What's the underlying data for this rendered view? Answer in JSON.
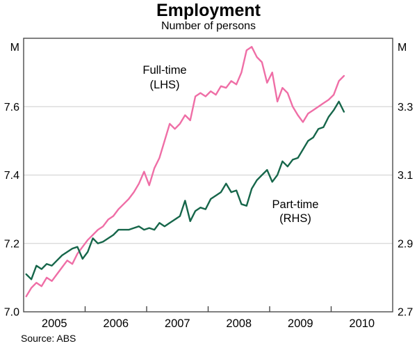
{
  "chart_data": {
    "type": "line",
    "title": "Employment",
    "subtitle": "Number of persons",
    "source": "Source: ABS",
    "x_axis": {
      "start_year": 2005,
      "months_total": 72,
      "year_labels": [
        "2005",
        "2006",
        "2007",
        "2008",
        "2009",
        "2010"
      ],
      "tick_month_boundaries": [
        12,
        24,
        36,
        48,
        60
      ]
    },
    "left_axis": {
      "unit": "M",
      "min": 7.0,
      "max": 7.8,
      "tick_values": [
        7.0,
        7.2,
        7.4,
        7.6
      ],
      "tick_labels": [
        "7.0",
        "7.2",
        "7.4",
        "7.6"
      ]
    },
    "right_axis": {
      "unit": "M",
      "min": 2.7,
      "max": 3.5,
      "tick_values": [
        2.7,
        2.9,
        3.1,
        3.3
      ],
      "tick_labels": [
        "2.7",
        "2.9",
        "3.1",
        "3.3"
      ]
    },
    "gridline_left_values": [
      7.2,
      7.4,
      7.6
    ],
    "series": [
      {
        "name": "Full-time",
        "axis": "LHS",
        "label_line1": "Full-time",
        "label_line2": "(LHS)",
        "color": "#ef6ea6",
        "start_month": "2005-01",
        "values": [
          7.045,
          7.07,
          7.085,
          7.075,
          7.1,
          7.09,
          7.11,
          7.13,
          7.15,
          7.14,
          7.17,
          7.19,
          7.21,
          7.225,
          7.24,
          7.25,
          7.27,
          7.28,
          7.3,
          7.315,
          7.33,
          7.35,
          7.375,
          7.41,
          7.37,
          7.42,
          7.45,
          7.5,
          7.55,
          7.535,
          7.55,
          7.575,
          7.56,
          7.63,
          7.64,
          7.63,
          7.645,
          7.635,
          7.66,
          7.655,
          7.675,
          7.665,
          7.7,
          7.765,
          7.775,
          7.745,
          7.73,
          7.67,
          7.7,
          7.615,
          7.655,
          7.64,
          7.6,
          7.575,
          7.555,
          7.58,
          7.59,
          7.6,
          7.61,
          7.62,
          7.635,
          7.675,
          7.69
        ]
      },
      {
        "name": "Part-time",
        "axis": "RHS",
        "label_line1": "Part-time",
        "label_line2": "(RHS)",
        "color": "#16664a",
        "start_month": "2005-01",
        "values": [
          2.81,
          2.795,
          2.835,
          2.825,
          2.84,
          2.835,
          2.85,
          2.865,
          2.875,
          2.885,
          2.89,
          2.855,
          2.875,
          2.915,
          2.9,
          2.905,
          2.915,
          2.925,
          2.94,
          2.94,
          2.94,
          2.945,
          2.95,
          2.94,
          2.945,
          2.94,
          2.96,
          2.95,
          2.96,
          2.97,
          2.98,
          3.025,
          2.965,
          2.995,
          3.005,
          3.0,
          3.03,
          3.04,
          3.05,
          3.075,
          3.05,
          3.055,
          3.015,
          3.01,
          3.06,
          3.085,
          3.1,
          3.115,
          3.08,
          3.1,
          3.14,
          3.125,
          3.145,
          3.15,
          3.175,
          3.2,
          3.21,
          3.235,
          3.24,
          3.27,
          3.29,
          3.315,
          3.285
        ]
      }
    ],
    "layout_hints": {
      "grid": "horizontal-only",
      "legend": "inline-annotations",
      "frame": "full-box"
    }
  },
  "colors": {
    "full_time_line": "#ef6ea6",
    "part_time_line": "#16664a",
    "frame": "#4a4a4a",
    "gridline": "#d6d6d6",
    "text": "#000000"
  }
}
